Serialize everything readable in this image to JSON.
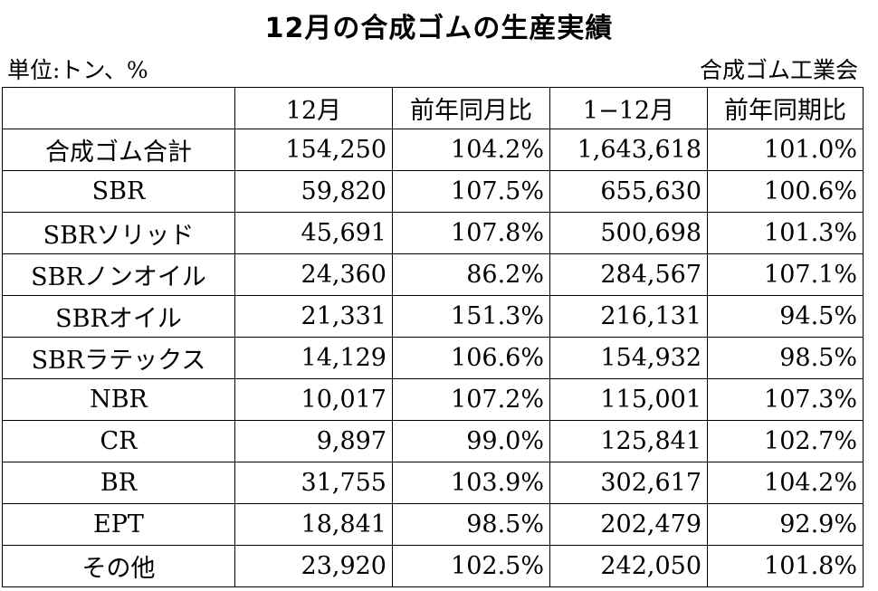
{
  "title": "12月の合成ゴムの生産実績",
  "unit_label": "単位:トン、%",
  "source_label": "合成ゴム工業会",
  "table": {
    "headers": [
      "",
      "12月",
      "前年同月比",
      "1−12月",
      "前年同期比"
    ],
    "rows": [
      {
        "name": "合成ゴム合計",
        "dec": "154,250",
        "dec_yoy": "104.2%",
        "ytd": "1,643,618",
        "ytd_yoy": "101.0%"
      },
      {
        "name": "SBR",
        "dec": "59,820",
        "dec_yoy": "107.5%",
        "ytd": "655,630",
        "ytd_yoy": "100.6%"
      },
      {
        "name": "SBRソリッド",
        "dec": "45,691",
        "dec_yoy": "107.8%",
        "ytd": "500,698",
        "ytd_yoy": "101.3%"
      },
      {
        "name": "SBRノンオイル",
        "dec": "24,360",
        "dec_yoy": "86.2%",
        "ytd": "284,567",
        "ytd_yoy": "107.1%"
      },
      {
        "name": "SBRオイル",
        "dec": "21,331",
        "dec_yoy": "151.3%",
        "ytd": "216,131",
        "ytd_yoy": "94.5%"
      },
      {
        "name": "SBRラテックス",
        "dec": "14,129",
        "dec_yoy": "106.6%",
        "ytd": "154,932",
        "ytd_yoy": "98.5%"
      },
      {
        "name": "NBR",
        "dec": "10,017",
        "dec_yoy": "107.2%",
        "ytd": "115,001",
        "ytd_yoy": "107.3%"
      },
      {
        "name": "CR",
        "dec": "9,897",
        "dec_yoy": "99.0%",
        "ytd": "125,841",
        "ytd_yoy": "102.7%"
      },
      {
        "name": "BR",
        "dec": "31,755",
        "dec_yoy": "103.9%",
        "ytd": "302,617",
        "ytd_yoy": "104.2%"
      },
      {
        "name": "EPT",
        "dec": "18,841",
        "dec_yoy": "98.5%",
        "ytd": "202,479",
        "ytd_yoy": "92.9%"
      },
      {
        "name": "その他",
        "dec": "23,920",
        "dec_yoy": "102.5%",
        "ytd": "242,050",
        "ytd_yoy": "101.8%"
      }
    ]
  }
}
